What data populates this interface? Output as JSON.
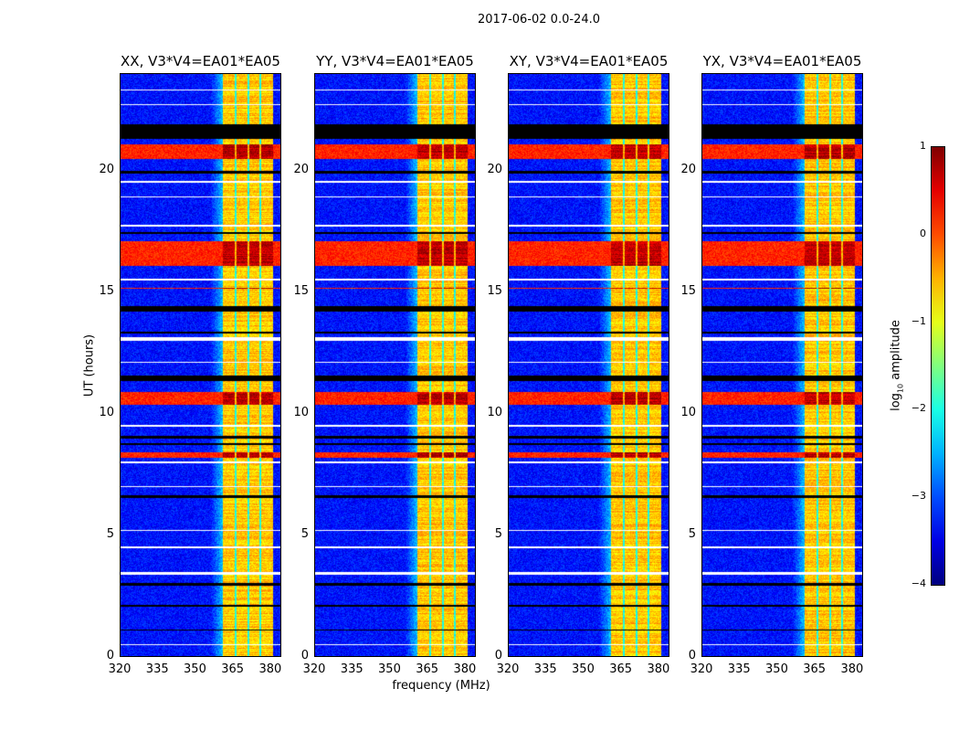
{
  "chart_data": {
    "type": "heatmap",
    "title": "2017-06-02 0.0-24.0",
    "xlabel": "frequency (MHz)",
    "ylabel": "UT (hours)",
    "xlim": [
      320,
      384.4
    ],
    "ylim": [
      0,
      24
    ],
    "xticks": [
      "320",
      "335",
      "350",
      "365",
      "380"
    ],
    "yticks": [
      "0",
      "5",
      "10",
      "15",
      "20"
    ],
    "panels": [
      {
        "title": "XX, V3*V4=EA01*EA05"
      },
      {
        "title": "YY, V3*V4=EA01*EA05"
      },
      {
        "title": "XY, V3*V4=EA01*EA05"
      },
      {
        "title": "YX, V3*V4=EA01*EA05"
      }
    ],
    "colorbar": {
      "label_prefix": "log",
      "label_sub": "10",
      "label_suffix": " amplitude",
      "range": [
        -4,
        1
      ],
      "ticks": [
        "1",
        "0",
        "−1",
        "−2",
        "−3",
        "−4"
      ],
      "colormap": "jet"
    },
    "background_log_amplitude": -3.3,
    "strong_band_mhz": [
      361,
      381
    ],
    "strong_band_log_amplitude": -0.6,
    "subband_gaps_mhz": [
      366,
      371,
      376
    ],
    "flagged_hours": [
      [
        21.3,
        21.9
      ],
      [
        19.9,
        20.0
      ],
      [
        17.4,
        17.5
      ],
      [
        14.2,
        14.45
      ],
      [
        13.3,
        13.4
      ],
      [
        11.35,
        11.6
      ],
      [
        9.0,
        9.1
      ],
      [
        8.75,
        8.8
      ],
      [
        6.55,
        6.65
      ],
      [
        2.95,
        3.05
      ],
      [
        2.1,
        2.15
      ],
      [
        1.1,
        1.15
      ]
    ],
    "gap_hours": [
      [
        23.3,
        23.35
      ],
      [
        22.7,
        22.75
      ],
      [
        19.5,
        19.6
      ],
      [
        18.9,
        18.95
      ],
      [
        17.7,
        17.8
      ],
      [
        15.5,
        15.55
      ],
      [
        13.0,
        13.15
      ],
      [
        12.1,
        12.15
      ],
      [
        9.5,
        9.55
      ],
      [
        8.0,
        8.05
      ],
      [
        7.0,
        7.05
      ],
      [
        5.2,
        5.25
      ],
      [
        4.5,
        4.55
      ],
      [
        3.4,
        3.5
      ],
      [
        0.5,
        0.55
      ]
    ],
    "hot_hours": [
      [
        16.1,
        17.1
      ],
      [
        20.5,
        21.1
      ],
      [
        8.2,
        8.45
      ],
      [
        10.4,
        10.9
      ],
      [
        15.15,
        15.2
      ]
    ]
  }
}
